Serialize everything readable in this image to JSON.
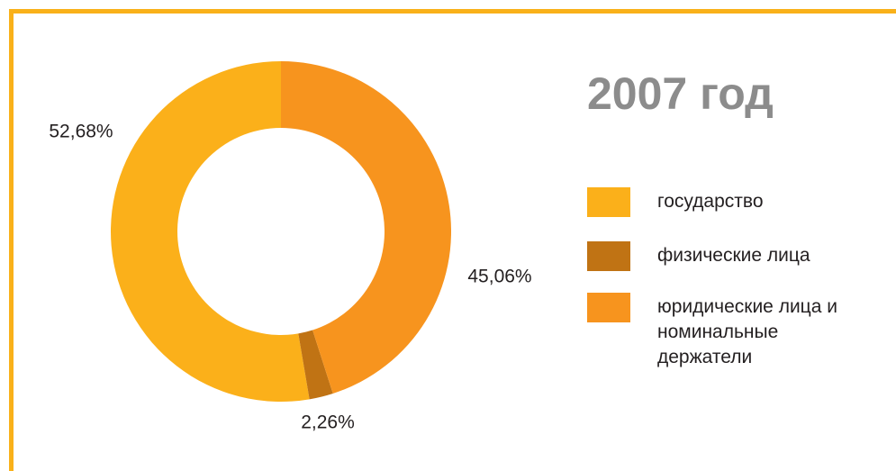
{
  "chart_data": {
    "type": "donut",
    "title": "2007 год",
    "categories": [
      "государство",
      "физические лица",
      "юридические лица и номинальные держатели"
    ],
    "values": [
      52.68,
      2.26,
      45.06
    ],
    "value_labels": [
      "52,68%",
      "2,26%",
      "45,06%"
    ],
    "colors": [
      "#fbb01a",
      "#c07314",
      "#f7941e"
    ],
    "legend": "right"
  }
}
